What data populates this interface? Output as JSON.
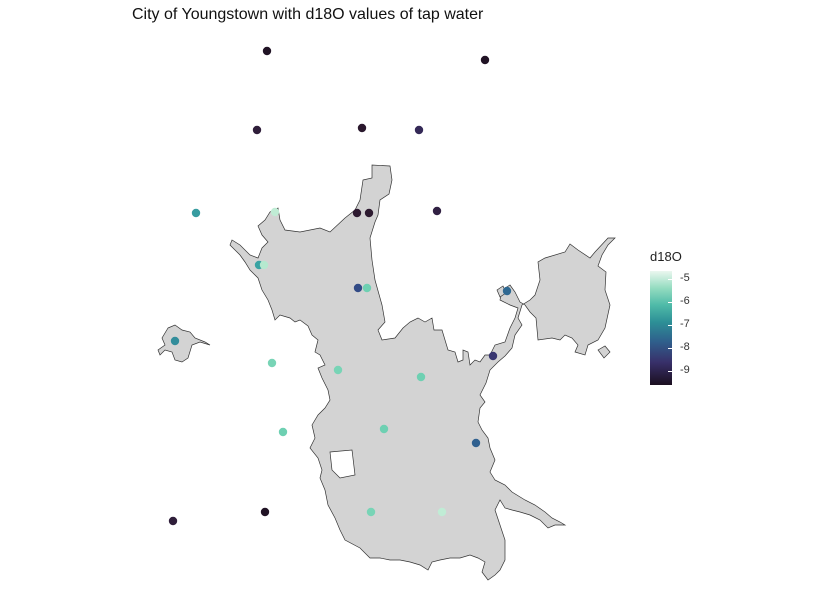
{
  "title": "City of Youngstown with d18O values of tap water",
  "legend": {
    "title": "d18O",
    "labels": [
      "-5",
      "-6",
      "-7",
      "-8",
      "-9"
    ],
    "range": [
      -9.6,
      -4.8
    ]
  },
  "colors": {
    "city_fill": "#d3d3d3",
    "city_stroke": "#333333",
    "background": "#ffffff"
  },
  "map_data": {
    "type": "point_map",
    "variable": "d18O",
    "points": [
      {
        "value": -9.4
      },
      {
        "value": -9.4
      },
      {
        "value": -8.9
      },
      {
        "value": -9.1
      },
      {
        "value": -8.6
      },
      {
        "value": -6.8
      },
      {
        "value": -5.2
      },
      {
        "value": -9.0
      },
      {
        "value": -9.0
      },
      {
        "value": -8.8
      },
      {
        "value": -6.7
      },
      {
        "value": -5.3
      },
      {
        "value": -7.9
      },
      {
        "value": -6.0
      },
      {
        "value": -7.5
      },
      {
        "value": -7.0
      },
      {
        "value": -8.3
      },
      {
        "value": -5.9
      },
      {
        "value": -5.9
      },
      {
        "value": -6.0
      },
      {
        "value": -6.0
      },
      {
        "value": -6.0
      },
      {
        "value": -7.6
      },
      {
        "value": -8.9
      },
      {
        "value": -9.4
      },
      {
        "value": -5.9
      },
      {
        "value": -5.2
      }
    ]
  }
}
